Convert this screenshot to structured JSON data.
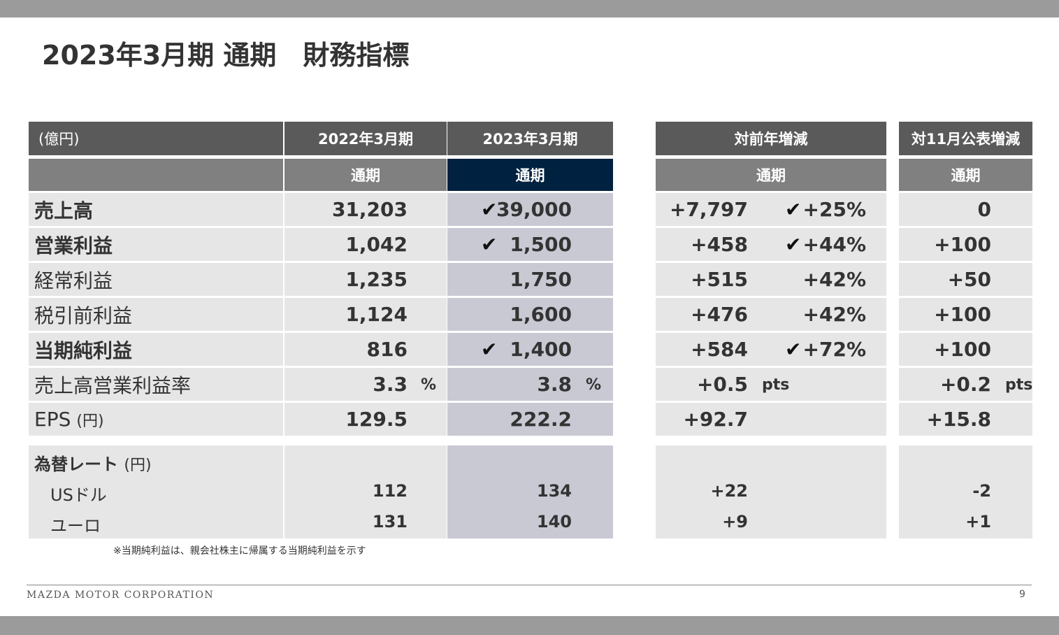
{
  "title": "2023年3月期 通期　財務指標",
  "unit_label": "(億円)",
  "headers": {
    "fy2022": "2022年3月期",
    "fy2023": "2023年3月期",
    "yoy": "対前年増減",
    "vs_nov": "対11月公表増減",
    "full_year": "通期"
  },
  "rows": [
    {
      "label": "売上高",
      "bold": true,
      "fy2022": "31,203",
      "fy2023": "39,000",
      "check23": true,
      "yoy_abs": "+7,797",
      "yoy_pct": "+25%",
      "check_pct": true,
      "vs_nov": "0"
    },
    {
      "label": "営業利益",
      "bold": true,
      "fy2022": "1,042",
      "fy2023": "1,500",
      "check23": true,
      "yoy_abs": "+458",
      "yoy_pct": "+44%",
      "check_pct": true,
      "vs_nov": "+100"
    },
    {
      "label": "経常利益",
      "bold": false,
      "fy2022": "1,235",
      "fy2023": "1,750",
      "check23": false,
      "yoy_abs": "+515",
      "yoy_pct": "+42%",
      "check_pct": false,
      "vs_nov": "+50"
    },
    {
      "label": "税引前利益",
      "bold": false,
      "fy2022": "1,124",
      "fy2023": "1,600",
      "check23": false,
      "yoy_abs": "+476",
      "yoy_pct": "+42%",
      "check_pct": false,
      "vs_nov": "+100"
    },
    {
      "label": "当期純利益",
      "bold": true,
      "fy2022": "816",
      "fy2023": "1,400",
      "check23": true,
      "yoy_abs": "+584",
      "yoy_pct": "+72%",
      "check_pct": true,
      "vs_nov": "+100"
    },
    {
      "label": "売上高営業利益率",
      "bold": false,
      "fy2022": "3.3",
      "fy2023": "3.8",
      "unit": "%",
      "check23": false,
      "yoy_abs": "+0.5",
      "yoy_unit": "pts",
      "yoy_pct": "",
      "check_pct": false,
      "vs_nov": "+0.2",
      "nov_unit": "pts"
    },
    {
      "label": "EPS",
      "label_suffix": "(円)",
      "bold": false,
      "fy2022": "129.5",
      "fy2023": "222.2",
      "check23": false,
      "yoy_abs": "+92.7",
      "yoy_pct": "",
      "check_pct": false,
      "vs_nov": "+15.8"
    }
  ],
  "check_mark": "✔",
  "fx": {
    "title": "為替レート",
    "title_suffix": "(円)",
    "rows": [
      {
        "label": "USドル",
        "fy2022": "112",
        "fy2023": "134",
        "yoy": "+22",
        "vs_nov": "-2"
      },
      {
        "label": "ユーロ",
        "fy2022": "131",
        "fy2023": "140",
        "yoy": "+9",
        "vs_nov": "+1"
      }
    ]
  },
  "note": "※当期純利益は、親会社株主に帰属する当期純利益を示す",
  "footer": {
    "company": "MAZDA MOTOR CORPORATION",
    "page": "9"
  },
  "colors": {
    "header_dark": "#5a5a5a",
    "header_mid": "#808080",
    "highlight_navy": "#00213f",
    "cell": "#e6e6e6",
    "cell_highlight": "#c8c9d3"
  }
}
